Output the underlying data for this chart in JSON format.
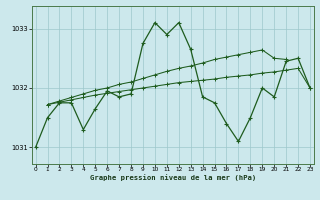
{
  "title": "Graphe pression niveau de la mer (hPa)",
  "background_color": "#cce8ec",
  "line_color": "#1e5c1e",
  "grid_color": "#9ec8cc",
  "xlim": [
    -0.3,
    23.3
  ],
  "ylim": [
    1030.72,
    1033.38
  ],
  "yticks": [
    1031,
    1032,
    1033
  ],
  "xticks": [
    0,
    1,
    2,
    3,
    4,
    5,
    6,
    7,
    8,
    9,
    10,
    11,
    12,
    13,
    14,
    15,
    16,
    17,
    18,
    19,
    20,
    21,
    22,
    23
  ],
  "main_x": [
    0,
    1,
    2,
    3,
    4,
    5,
    6,
    7,
    8,
    9,
    10,
    11,
    12,
    13,
    14,
    15,
    16,
    17,
    18,
    19,
    20,
    21,
    22,
    23
  ],
  "main_y": [
    1031.0,
    1031.5,
    1031.75,
    1031.75,
    1031.3,
    1031.65,
    1031.95,
    1031.85,
    1031.9,
    1032.75,
    1033.1,
    1032.9,
    1033.1,
    1032.65,
    1031.85,
    1031.75,
    1031.4,
    1031.1,
    1031.5,
    1032.0,
    1031.85,
    1032.45,
    1032.5,
    1032.0
  ],
  "upper_x": [
    1,
    2,
    3,
    4,
    5,
    6,
    7,
    8,
    9,
    10,
    11,
    12,
    13,
    14,
    15,
    16,
    17,
    18,
    19,
    20,
    21
  ],
  "upper_y": [
    1031.72,
    1031.78,
    1031.84,
    1031.9,
    1031.96,
    1032.0,
    1032.06,
    1032.1,
    1032.16,
    1032.22,
    1032.28,
    1032.33,
    1032.37,
    1032.42,
    1032.48,
    1032.52,
    1032.56,
    1032.6,
    1032.64,
    1032.5,
    1032.48
  ],
  "lower_x": [
    1,
    2,
    3,
    4,
    5,
    6,
    7,
    8,
    9,
    10,
    11,
    12,
    13,
    14,
    15,
    16,
    17,
    18,
    19,
    20,
    21,
    22,
    23
  ],
  "lower_y": [
    1031.72,
    1031.76,
    1031.8,
    1031.84,
    1031.88,
    1031.91,
    1031.94,
    1031.97,
    1032.0,
    1032.03,
    1032.06,
    1032.09,
    1032.11,
    1032.13,
    1032.15,
    1032.18,
    1032.2,
    1032.22,
    1032.25,
    1032.27,
    1032.3,
    1032.33,
    1032.0
  ]
}
